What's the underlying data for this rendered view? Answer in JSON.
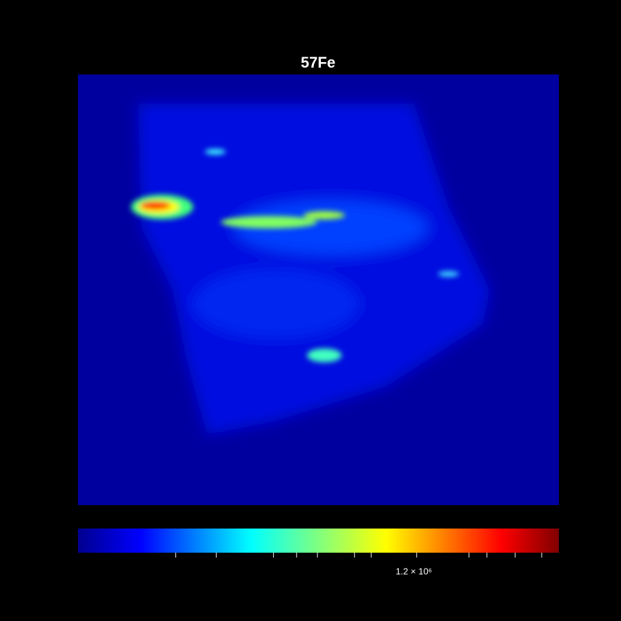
{
  "chart_data": {
    "type": "heatmap",
    "title": "57Fe",
    "colorbar": {
      "scale": "sqrt",
      "lim": [
        0,
        2420000
      ],
      "ticks": [
        100000,
        200000,
        400000,
        500000,
        600000,
        800000,
        900000,
        {
          "value": 1200000,
          "label": "1.2 × 10⁶"
        },
        1600000,
        1750000,
        2000000,
        2250000
      ],
      "colors": [
        "#00008f",
        "#0000ff",
        "#00ffff",
        "#ffff00",
        "#ff0000",
        "#800000"
      ]
    }
  }
}
